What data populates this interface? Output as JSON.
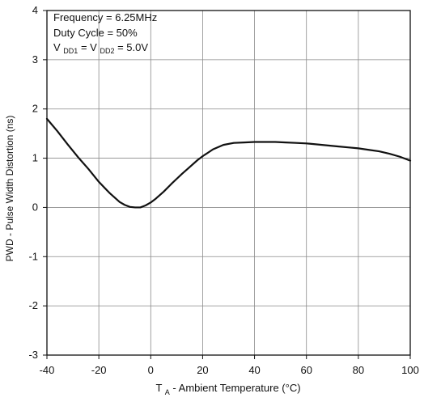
{
  "chart_data": {
    "type": "line",
    "xlabel": {
      "main": "T",
      "sub": "A",
      "rest": " - Ambient Temperature (°C)"
    },
    "ylabel": "PWD - Pulse Width Distortion (ns)",
    "xlim": [
      -40,
      100
    ],
    "ylim": [
      -3,
      4
    ],
    "xticks": [
      -40,
      -20,
      0,
      20,
      40,
      60,
      80,
      100
    ],
    "yticks": [
      -3,
      -2,
      -1,
      0,
      1,
      2,
      3,
      4
    ],
    "xtick_labels": [
      "-40",
      "-20",
      "0",
      "20",
      "40",
      "60",
      "80",
      "100"
    ],
    "ytick_labels": [
      "-3",
      "-2",
      "-1",
      "0",
      "1",
      "2",
      "3",
      "4"
    ],
    "grid": true,
    "annotations": {
      "line1": "Frequency = 6.25MHz",
      "line2": "Duty Cycle = 50%",
      "line3": {
        "v1": "V",
        "s1": "DD1",
        "eq": " = ",
        "v2": "V",
        "s2": "DD2",
        "tail": " = 5.0V"
      }
    },
    "series": [
      {
        "x": [
          -40,
          -36,
          -32,
          -28,
          -24,
          -20,
          -16,
          -12,
          -10,
          -8,
          -6,
          -4,
          -2,
          0,
          2,
          5,
          8,
          10,
          12,
          15,
          18,
          20,
          24,
          28,
          32,
          36,
          40,
          44,
          48,
          52,
          56,
          60,
          64,
          68,
          72,
          76,
          80,
          84,
          88,
          92,
          96,
          100
        ],
        "y": [
          1.8,
          1.55,
          1.28,
          1.02,
          0.78,
          0.52,
          0.3,
          0.11,
          0.05,
          0.01,
          0.0,
          0.0,
          0.04,
          0.1,
          0.18,
          0.32,
          0.48,
          0.58,
          0.68,
          0.82,
          0.96,
          1.04,
          1.18,
          1.27,
          1.31,
          1.32,
          1.33,
          1.33,
          1.33,
          1.32,
          1.31,
          1.3,
          1.28,
          1.26,
          1.24,
          1.22,
          1.2,
          1.17,
          1.14,
          1.09,
          1.03,
          0.95
        ]
      }
    ]
  }
}
